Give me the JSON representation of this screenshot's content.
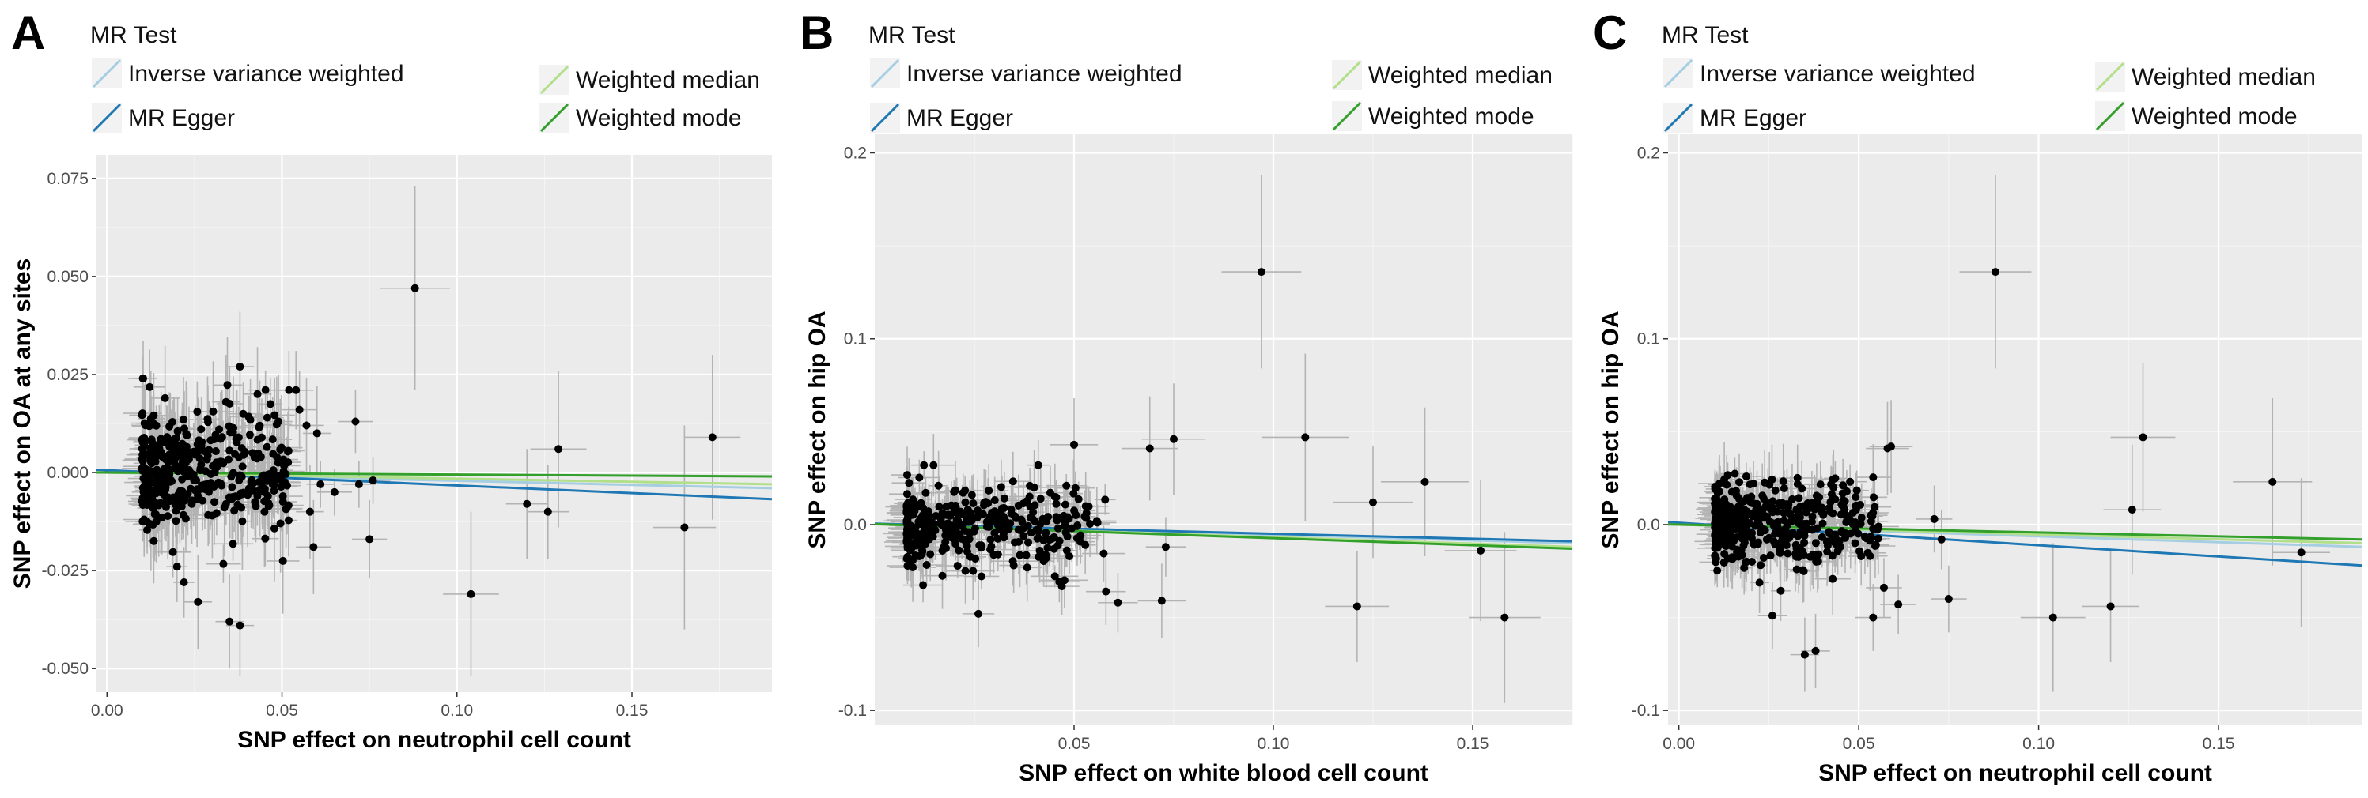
{
  "colors": {
    "panel_bg": "#ebebeb",
    "grid_major": "#ffffff",
    "errbar": "#b3b3b3",
    "point": "#000000",
    "ivw": "#a6cee3",
    "egger": "#1f78b4",
    "wmedian": "#b2df8a",
    "wmode": "#33a02c"
  },
  "chart_data": [
    {
      "type": "scatter",
      "panel_label": "A",
      "legend_title": "MR Test",
      "legend": [
        "Inverse variance weighted",
        "MR Egger",
        "Weighted median",
        "Weighted mode"
      ],
      "xlabel": "SNP effect on neutrophil cell count",
      "ylabel": "SNP effect on OA at any sites",
      "xlim": [
        -0.003,
        0.19
      ],
      "ylim": [
        -0.056,
        0.081
      ],
      "xticks": [
        0.0,
        0.05,
        0.1,
        0.15
      ],
      "xtick_labels": [
        "0.00",
        "0.05",
        "0.10",
        "0.15"
      ],
      "yticks": [
        -0.05,
        -0.025,
        0.0,
        0.025,
        0.05,
        0.075
      ],
      "ytick_labels": [
        "-0.050",
        "-0.025",
        "0.000",
        "0.025",
        "0.050",
        "0.075"
      ],
      "lines": {
        "ivw": [
          0,
          -0.004
        ],
        "egger": [
          0.0006,
          -0.0068
        ],
        "wmedian": [
          0,
          -0.003
        ],
        "wmode": [
          0,
          -0.001
        ]
      },
      "points": [
        [
          0.088,
          0.047,
          0.01,
          0.026
        ],
        [
          0.104,
          -0.031,
          0.008,
          0.021
        ],
        [
          0.129,
          0.006,
          0.008,
          0.02
        ],
        [
          0.173,
          0.009,
          0.008,
          0.021
        ],
        [
          0.165,
          -0.014,
          0.009,
          0.026
        ],
        [
          0.12,
          -0.008,
          0.006,
          0.014
        ],
        [
          0.126,
          -0.01,
          0.006,
          0.012
        ],
        [
          0.071,
          0.013,
          0.005,
          0.008
        ],
        [
          0.075,
          -0.017,
          0.005,
          0.01
        ],
        [
          0.076,
          -0.002,
          0.005,
          0.006
        ],
        [
          0.065,
          -0.005,
          0.005,
          0.006
        ],
        [
          0.072,
          -0.003,
          0.005,
          0.006
        ],
        [
          0.052,
          0.021,
          0.005,
          0.01
        ],
        [
          0.054,
          0.021,
          0.005,
          0.01
        ],
        [
          0.055,
          0.016,
          0.005,
          0.01
        ],
        [
          0.057,
          0.012,
          0.005,
          0.012
        ],
        [
          0.06,
          0.01,
          0.004,
          0.012
        ],
        [
          0.059,
          -0.019,
          0.005,
          0.012
        ],
        [
          0.058,
          -0.01,
          0.004,
          0.012
        ],
        [
          0.061,
          -0.003,
          0.004,
          0.006
        ],
        [
          0.049,
          0.013,
          0.004,
          0.012
        ],
        [
          0.045,
          -0.01,
          0.004,
          0.014
        ],
        [
          0.035,
          -0.038,
          0.004,
          0.012
        ],
        [
          0.038,
          -0.039,
          0.004,
          0.013
        ],
        [
          0.026,
          -0.033,
          0.004,
          0.012
        ],
        [
          0.038,
          0.027,
          0.004,
          0.014
        ],
        [
          0.034,
          0.018,
          0.004,
          0.012
        ],
        [
          0.043,
          0.02,
          0.004,
          0.012
        ],
        [
          0.044,
          0.004,
          0.004,
          0.01
        ],
        [
          0.046,
          -0.006,
          0.004,
          0.008
        ],
        [
          0.02,
          -0.024,
          0.003,
          0.009
        ],
        [
          0.022,
          -0.028,
          0.003,
          0.009
        ]
      ],
      "cloud": {
        "x_min": 0.01,
        "x_max": 0.052,
        "y_min": -0.028,
        "y_max": 0.024,
        "n": 420,
        "seed": 11
      }
    },
    {
      "type": "scatter",
      "panel_label": "B",
      "legend_title": "MR Test",
      "legend": [
        "Inverse variance weighted",
        "MR Egger",
        "Weighted median",
        "Weighted mode"
      ],
      "xlabel": "SNP effect on white blood cell count",
      "ylabel": "SNP effect on hip OA",
      "xlim": [
        0.0,
        0.175
      ],
      "ylim": [
        -0.108,
        0.21
      ],
      "xticks": [
        0.05,
        0.1,
        0.15
      ],
      "xtick_labels": [
        "0.05",
        "0.10",
        "0.15"
      ],
      "yticks": [
        -0.1,
        0.0,
        0.1,
        0.2
      ],
      "ytick_labels": [
        "-0.1",
        "0.0",
        "0.1",
        "0.2"
      ],
      "lines": {
        "ivw": [
          0.0005,
          -0.01
        ],
        "egger": [
          0.0005,
          -0.009
        ],
        "wmedian": [
          0.0002,
          -0.012
        ],
        "wmode": [
          0.0003,
          -0.013
        ]
      },
      "points": [
        [
          0.097,
          0.136,
          0.01,
          0.052
        ],
        [
          0.108,
          0.047,
          0.011,
          0.045
        ],
        [
          0.075,
          0.046,
          0.008,
          0.03
        ],
        [
          0.069,
          0.041,
          0.007,
          0.028
        ],
        [
          0.05,
          0.043,
          0.006,
          0.025
        ],
        [
          0.138,
          0.023,
          0.011,
          0.04
        ],
        [
          0.125,
          0.012,
          0.01,
          0.03
        ],
        [
          0.121,
          -0.044,
          0.008,
          0.03
        ],
        [
          0.152,
          -0.014,
          0.009,
          0.038
        ],
        [
          0.158,
          -0.05,
          0.009,
          0.046
        ],
        [
          0.072,
          -0.041,
          0.006,
          0.02
        ],
        [
          0.073,
          -0.012,
          0.005,
          0.016
        ],
        [
          0.058,
          -0.036,
          0.005,
          0.018
        ],
        [
          0.061,
          -0.042,
          0.005,
          0.016
        ],
        [
          0.046,
          -0.002,
          0.005,
          0.018
        ],
        [
          0.04,
          0.02,
          0.005,
          0.02
        ],
        [
          0.043,
          -0.018,
          0.005,
          0.016
        ],
        [
          0.026,
          -0.048,
          0.004,
          0.018
        ]
      ],
      "cloud": {
        "x_min": 0.008,
        "x_max": 0.058,
        "y_min": -0.04,
        "y_max": 0.032,
        "n": 380,
        "seed": 23
      }
    },
    {
      "type": "scatter",
      "panel_label": "C",
      "legend_title": "MR Test",
      "legend": [
        "Inverse variance weighted",
        "MR Egger",
        "Weighted median",
        "Weighted mode"
      ],
      "xlabel": "SNP effect on neutrophil cell count",
      "ylabel": "SNP effect on hip OA",
      "xlim": [
        -0.003,
        0.19
      ],
      "ylim": [
        -0.108,
        0.21
      ],
      "xticks": [
        0.0,
        0.05,
        0.1,
        0.15
      ],
      "xtick_labels": [
        "0.00",
        "0.05",
        "0.10",
        "0.15"
      ],
      "yticks": [
        -0.1,
        0.0,
        0.1,
        0.2
      ],
      "ytick_labels": [
        "-0.1",
        "0.0",
        "0.1",
        "0.2"
      ],
      "lines": {
        "ivw": [
          0.0,
          -0.012
        ],
        "egger": [
          0.001,
          -0.022
        ],
        "wmedian": [
          0.0,
          -0.01
        ],
        "wmode": [
          0.0,
          -0.008
        ]
      },
      "points": [
        [
          0.088,
          0.136,
          0.01,
          0.052
        ],
        [
          0.129,
          0.047,
          0.009,
          0.04
        ],
        [
          0.126,
          0.008,
          0.008,
          0.035
        ],
        [
          0.165,
          0.023,
          0.011,
          0.045
        ],
        [
          0.173,
          -0.015,
          0.008,
          0.04
        ],
        [
          0.12,
          -0.044,
          0.008,
          0.03
        ],
        [
          0.104,
          -0.05,
          0.009,
          0.04
        ],
        [
          0.071,
          0.003,
          0.005,
          0.018
        ],
        [
          0.075,
          -0.04,
          0.005,
          0.018
        ],
        [
          0.073,
          -0.008,
          0.005,
          0.016
        ],
        [
          0.058,
          0.041,
          0.006,
          0.025
        ],
        [
          0.059,
          0.042,
          0.006,
          0.025
        ],
        [
          0.057,
          -0.034,
          0.005,
          0.016
        ],
        [
          0.054,
          -0.05,
          0.005,
          0.018
        ],
        [
          0.061,
          -0.043,
          0.005,
          0.016
        ],
        [
          0.049,
          -0.01,
          0.005,
          0.016
        ],
        [
          0.038,
          -0.068,
          0.004,
          0.02
        ],
        [
          0.035,
          -0.07,
          0.004,
          0.02
        ],
        [
          0.026,
          -0.049,
          0.004,
          0.018
        ],
        [
          0.043,
          0.02,
          0.005,
          0.02
        ]
      ],
      "cloud": {
        "x_min": 0.01,
        "x_max": 0.056,
        "y_min": -0.045,
        "y_max": 0.034,
        "n": 420,
        "seed": 37
      }
    }
  ]
}
